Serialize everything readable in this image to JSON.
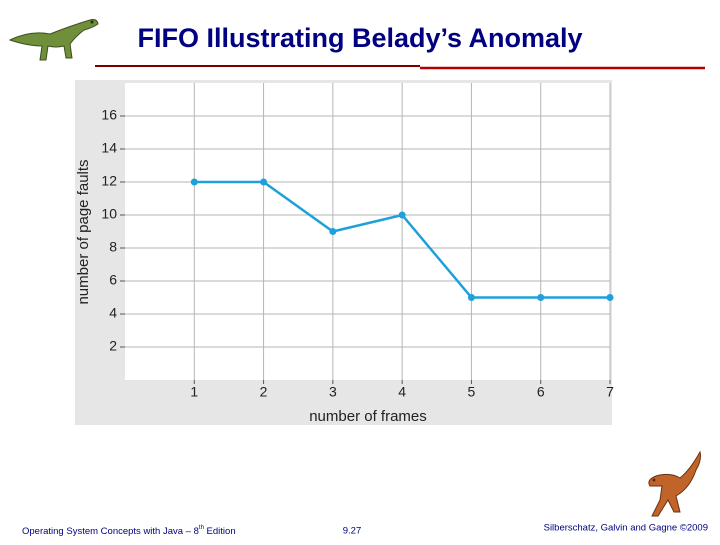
{
  "slide": {
    "title": "FIFO Illustrating Belady’s Anomaly",
    "footer_left": [
      "Operating System Concepts  with  Java – 8",
      "th",
      " Edition"
    ],
    "footer_center": "9.27",
    "footer_right": "Silberschatz, Galvin and Gagne ©2009"
  },
  "chart_data": {
    "type": "line",
    "x_label": "number of frames",
    "y_label": "number of page faults",
    "x": [
      1,
      2,
      3,
      4,
      5,
      6,
      7
    ],
    "values": [
      12,
      12,
      9,
      10,
      5,
      5,
      5
    ],
    "color": "#1ea0da",
    "xlim": [
      0,
      7
    ],
    "ylim": [
      0,
      18
    ],
    "xticks": [
      1,
      2,
      3,
      4,
      5,
      6,
      7
    ],
    "yticks": [
      2,
      4,
      6,
      8,
      10,
      12,
      14,
      16
    ],
    "grid": true
  }
}
